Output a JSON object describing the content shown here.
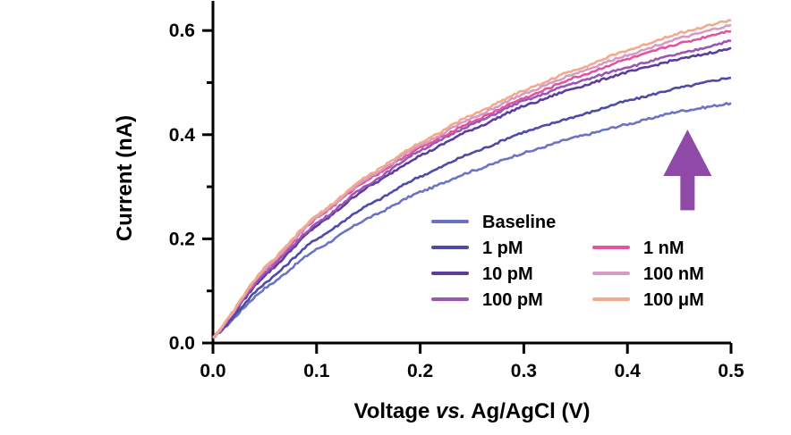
{
  "chart_data": {
    "type": "line",
    "xlabel": {
      "prefix": "Voltage ",
      "italic": "vs.",
      "suffix": " Ag/AgCl (V)"
    },
    "ylabel": "Current (nA)",
    "xlim": [
      0,
      0.5
    ],
    "ylim": [
      0,
      0.65
    ],
    "x_ticks": [
      0.0,
      0.1,
      0.2,
      0.3,
      0.4,
      0.5
    ],
    "x_tick_labels": [
      "0.0",
      "0.1",
      "0.2",
      "0.3",
      "0.4",
      "0.5"
    ],
    "y_ticks": [
      0.0,
      0.2,
      0.4,
      0.6
    ],
    "y_tick_labels": [
      "0.0",
      "0.2",
      "0.4",
      "0.6"
    ],
    "y_minor_ticks": [
      0.1,
      0.3,
      0.5
    ],
    "grid": false,
    "legend_position": "bottom-right",
    "x": [
      0.0,
      0.05,
      0.1,
      0.15,
      0.2,
      0.25,
      0.3,
      0.35,
      0.4,
      0.45,
      0.5
    ],
    "series": [
      {
        "name": "Baseline",
        "color": "#6A74C4",
        "values": [
          0.01,
          0.105,
          0.18,
          0.24,
          0.29,
          0.33,
          0.365,
          0.395,
          0.42,
          0.445,
          0.46
        ]
      },
      {
        "name": "1 pM",
        "color": "#4E4AA6",
        "values": [
          0.01,
          0.115,
          0.2,
          0.265,
          0.32,
          0.365,
          0.405,
          0.435,
          0.465,
          0.49,
          0.51
        ]
      },
      {
        "name": "10 pM",
        "color": "#5B3D9E",
        "values": [
          0.01,
          0.13,
          0.225,
          0.3,
          0.36,
          0.41,
          0.455,
          0.49,
          0.52,
          0.545,
          0.565
        ]
      },
      {
        "name": "100 pM",
        "color": "#9B55B5",
        "values": [
          0.01,
          0.135,
          0.23,
          0.305,
          0.37,
          0.42,
          0.465,
          0.5,
          0.53,
          0.555,
          0.58
        ]
      },
      {
        "name": "1 nM",
        "color": "#E0559E",
        "values": [
          0.01,
          0.14,
          0.24,
          0.315,
          0.375,
          0.425,
          0.47,
          0.51,
          0.545,
          0.575,
          0.6
        ]
      },
      {
        "name": "100 nM",
        "color": "#D79AC7",
        "values": [
          0.01,
          0.142,
          0.242,
          0.318,
          0.38,
          0.432,
          0.478,
          0.518,
          0.553,
          0.585,
          0.61
        ]
      },
      {
        "name": "100 μM",
        "color": "#F2A98C",
        "values": [
          0.01,
          0.145,
          0.245,
          0.322,
          0.385,
          0.438,
          0.485,
          0.525,
          0.562,
          0.595,
          0.62
        ]
      }
    ],
    "legend_columns": [
      [
        "Baseline",
        "1 pM",
        "10 pM",
        "100 pM"
      ],
      [
        "1 nM",
        "100 nM",
        "100 μM"
      ]
    ],
    "annotation": {
      "type": "arrow-up",
      "color": "#8E4AA6",
      "x": 0.458,
      "y_bottom": 0.255,
      "y_top": 0.41
    }
  }
}
